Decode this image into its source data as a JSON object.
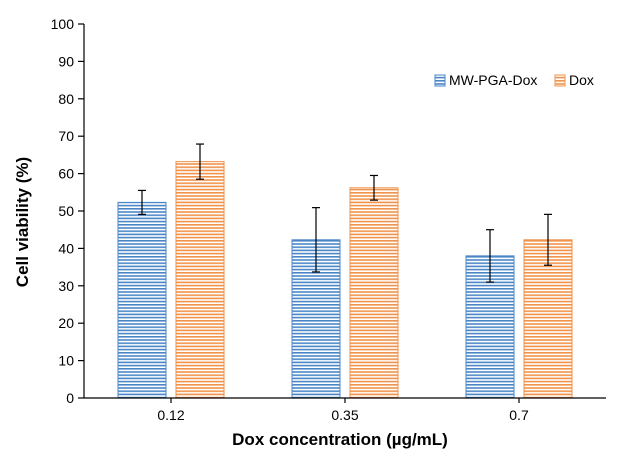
{
  "chart_data": {
    "type": "bar",
    "title": "",
    "xlabel": "Dox concentration (µg/mL)",
    "ylabel": "Cell viability (%)",
    "ylim": [
      0,
      100
    ],
    "yticks": [
      0,
      10,
      20,
      30,
      40,
      50,
      60,
      70,
      80,
      90,
      100
    ],
    "categories": [
      "0.12",
      "0.35",
      "0.7"
    ],
    "series": [
      {
        "name": "MW-PGA-Dox",
        "values": [
          52.3,
          42.3,
          38.0
        ],
        "errors": [
          3.2,
          8.6,
          7.0
        ],
        "color": "#4a86c8"
      },
      {
        "name": "Dox",
        "values": [
          63.2,
          56.2,
          42.3
        ],
        "errors": [
          4.7,
          3.3,
          6.8
        ],
        "color": "#f0924a"
      }
    ],
    "legend_position": "top-right",
    "grid": false
  }
}
